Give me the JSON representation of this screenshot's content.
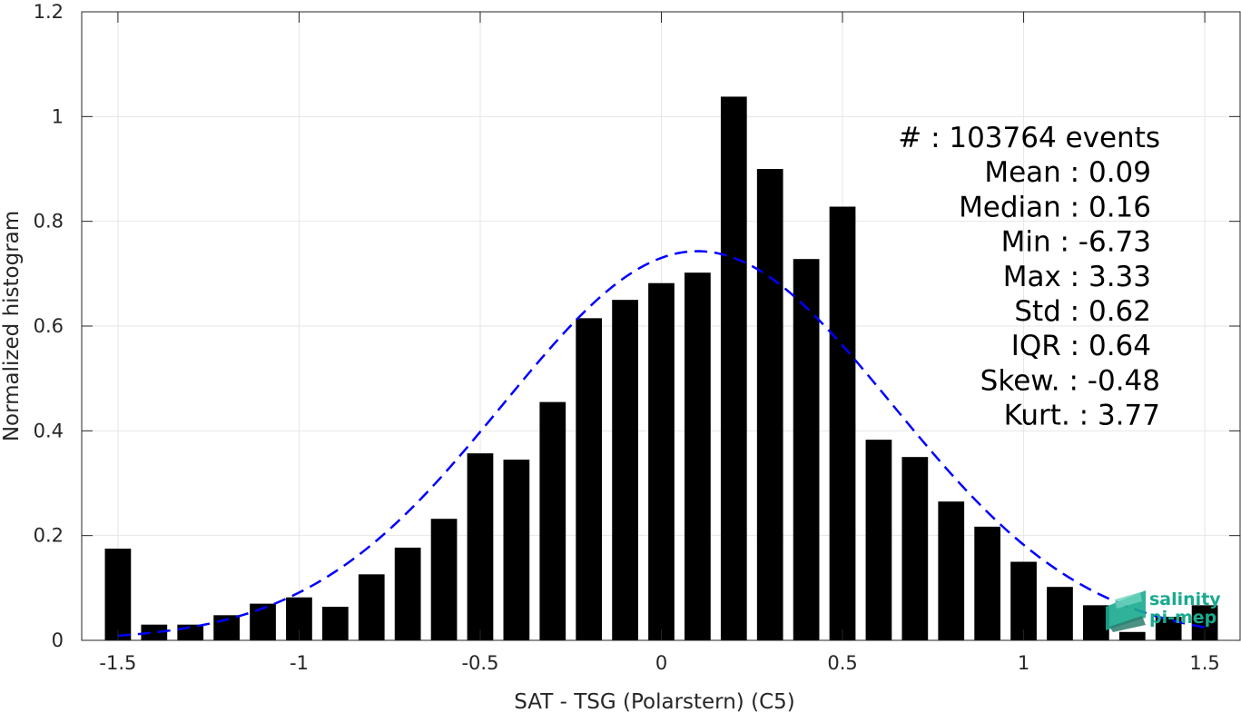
{
  "chart_data": {
    "type": "bar",
    "xlabel": "SAT - TSG (Polarstern) (C5)",
    "ylabel": "Normalized histogram",
    "xlim": [
      -1.6,
      1.6
    ],
    "ylim": [
      0,
      1.2
    ],
    "xticks": [
      "-1.5",
      "-1",
      "-0.5",
      "0",
      "0.5",
      "1",
      "1.5"
    ],
    "xtick_values": [
      -1.5,
      -1,
      -0.5,
      0,
      0.5,
      1,
      1.5
    ],
    "yticks": [
      "0",
      "0.2",
      "0.4",
      "0.6",
      "0.8",
      "1",
      "1.2"
    ],
    "ytick_values": [
      0,
      0.2,
      0.4,
      0.6,
      0.8,
      1,
      1.2
    ],
    "grid": true,
    "bar_color": "#000000",
    "x": [
      -1.5,
      -1.4,
      -1.3,
      -1.2,
      -1.1,
      -1.0,
      -0.9,
      -0.8,
      -0.7,
      -0.6,
      -0.5,
      -0.4,
      -0.3,
      -0.2,
      -0.1,
      0.0,
      0.1,
      0.2,
      0.3,
      0.4,
      0.5,
      0.6,
      0.7,
      0.8,
      0.9,
      1.0,
      1.1,
      1.2,
      1.3,
      1.4,
      1.5
    ],
    "values": [
      0.175,
      0.03,
      0.03,
      0.048,
      0.07,
      0.082,
      0.064,
      0.126,
      0.177,
      0.232,
      0.357,
      0.345,
      0.455,
      0.615,
      0.65,
      0.682,
      0.702,
      1.038,
      0.9,
      0.728,
      0.828,
      0.383,
      0.35,
      0.265,
      0.217,
      0.15,
      0.102,
      0.067,
      0.016,
      0.045,
      0.067
    ],
    "fit_curve": {
      "style": "dashed",
      "color": "#0000ff",
      "mean": 0.1,
      "std": 0.537,
      "peak": 0.743,
      "x_range": [
        -1.5,
        1.5
      ]
    },
    "stats": [
      {
        "label": "#  : 103764 events"
      },
      {
        "label": "Mean : 0.09"
      },
      {
        "label": "Median : 0.16"
      },
      {
        "label": "Min : -6.73"
      },
      {
        "label": "Max : 3.33"
      },
      {
        "label": "Std : 0.62"
      },
      {
        "label": "IQR : 0.64"
      },
      {
        "label": "Skew. : -0.48"
      },
      {
        "label": "Kurt. : 3.77"
      }
    ]
  },
  "logo": {
    "line1": "salinity",
    "line2": "pi-mep",
    "color": "#1aaa8f"
  }
}
